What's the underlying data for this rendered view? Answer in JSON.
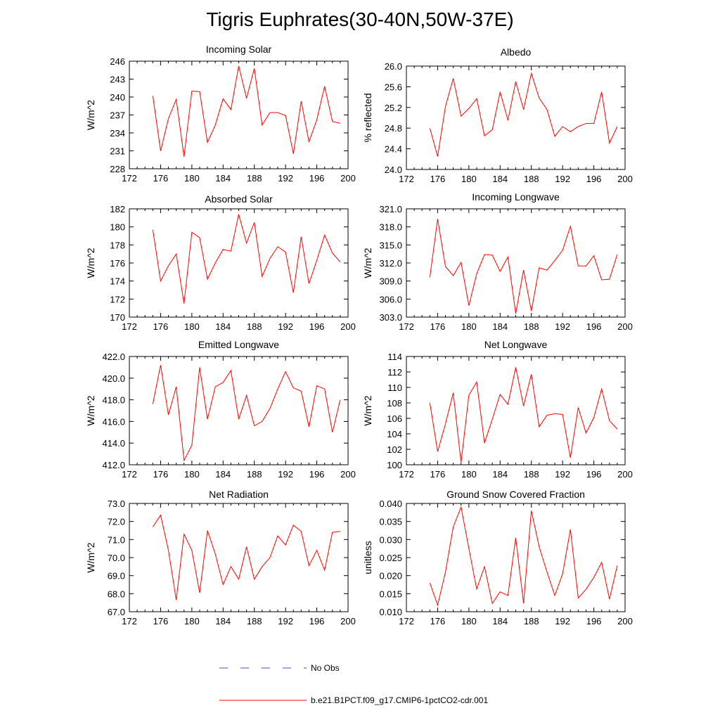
{
  "title": "Tigris Euphrates(30-40N,50W-37E)",
  "legend": {
    "entries": [
      {
        "label": "No Obs",
        "style": "dashed",
        "color": "#4b4bcc"
      },
      {
        "label": "b.e21.B1PCT.f09_g17.CMIP6-1pctCO2-cdr.001",
        "style": "solid",
        "color": "#ff0000"
      }
    ]
  },
  "chart_data": [
    {
      "type": "line",
      "title": "Incoming Solar",
      "ylabel": "W/m^2",
      "xlim": [
        172,
        200
      ],
      "ylim": [
        228,
        246
      ],
      "xticks": [
        "172",
        "176",
        "180",
        "184",
        "188",
        "192",
        "196",
        "200"
      ],
      "yticks": [
        "228",
        "231",
        "234",
        "237",
        "240",
        "243",
        "246"
      ],
      "series": [
        {
          "color": "#ff0000",
          "x": [
            175,
            176,
            177,
            178,
            179,
            180,
            181,
            182,
            183,
            184,
            185,
            186,
            187,
            188,
            189,
            190,
            191,
            192,
            193,
            194,
            195,
            196,
            197,
            198,
            199
          ],
          "y": [
            240.2,
            231.0,
            236.4,
            239.6,
            230.0,
            241.0,
            240.9,
            232.4,
            235.3,
            239.7,
            237.9,
            245.2,
            239.8,
            244.8,
            235.3,
            237.4,
            237.4,
            236.9,
            230.5,
            239.3,
            232.5,
            236.2,
            241.8,
            235.9,
            235.6
          ]
        }
      ]
    },
    {
      "type": "line",
      "title": "Albedo",
      "ylabel": "% reflected",
      "xlim": [
        172,
        200
      ],
      "ylim": [
        24.0,
        26.0
      ],
      "xticks": [
        "172",
        "176",
        "180",
        "184",
        "188",
        "192",
        "196",
        "200"
      ],
      "yticks": [
        "24.0",
        "24.4",
        "24.8",
        "25.2",
        "25.6",
        "26.0"
      ],
      "series": [
        {
          "color": "#ff0000",
          "x": [
            175,
            176,
            177,
            178,
            179,
            180,
            181,
            182,
            183,
            184,
            185,
            186,
            187,
            188,
            189,
            190,
            191,
            192,
            193,
            194,
            195,
            196,
            197,
            198,
            199
          ],
          "y": [
            24.8,
            24.25,
            25.22,
            25.76,
            25.03,
            25.18,
            25.37,
            24.65,
            24.77,
            25.5,
            24.95,
            25.7,
            25.16,
            25.86,
            25.38,
            25.16,
            24.64,
            24.83,
            24.73,
            24.83,
            24.89,
            24.89,
            25.5,
            24.51,
            24.83
          ]
        }
      ]
    },
    {
      "type": "line",
      "title": "Absorbed Solar",
      "ylabel": "W/m^2",
      "xlim": [
        172,
        200
      ],
      "ylim": [
        170,
        182
      ],
      "xticks": [
        "172",
        "176",
        "180",
        "184",
        "188",
        "192",
        "196",
        "200"
      ],
      "yticks": [
        "170",
        "172",
        "174",
        "176",
        "178",
        "180",
        "182"
      ],
      "series": [
        {
          "color": "#ff0000",
          "x": [
            175,
            176,
            177,
            178,
            179,
            180,
            181,
            182,
            183,
            184,
            185,
            186,
            187,
            188,
            189,
            190,
            191,
            192,
            193,
            194,
            195,
            196,
            197,
            198,
            199
          ],
          "y": [
            179.7,
            174.0,
            175.7,
            177.0,
            171.5,
            179.4,
            178.8,
            174.2,
            176.0,
            177.5,
            177.3,
            181.4,
            178.2,
            180.5,
            174.5,
            176.5,
            177.8,
            177.2,
            172.7,
            178.9,
            173.7,
            176.3,
            179.1,
            177.1,
            176.1
          ]
        }
      ]
    },
    {
      "type": "line",
      "title": "Incoming Longwave",
      "ylabel": "W/m^2",
      "xlim": [
        172,
        200
      ],
      "ylim": [
        303.0,
        321.0
      ],
      "xticks": [
        "172",
        "176",
        "180",
        "184",
        "188",
        "192",
        "196",
        "200"
      ],
      "yticks": [
        "303.0",
        "306.0",
        "309.0",
        "312.0",
        "315.0",
        "318.0",
        "321.0"
      ],
      "series": [
        {
          "color": "#ff0000",
          "x": [
            175,
            176,
            177,
            178,
            179,
            180,
            181,
            182,
            183,
            184,
            185,
            186,
            187,
            188,
            189,
            190,
            191,
            192,
            193,
            194,
            195,
            196,
            197,
            198,
            199
          ],
          "y": [
            309.6,
            319.3,
            311.4,
            309.9,
            312.1,
            304.9,
            310.2,
            313.4,
            313.3,
            310.6,
            313.0,
            303.6,
            310.8,
            304.0,
            311.2,
            310.8,
            312.4,
            314.1,
            318.1,
            311.5,
            311.5,
            313.2,
            309.2,
            309.3,
            313.4
          ]
        }
      ]
    },
    {
      "type": "line",
      "title": "Emitted Longwave",
      "ylabel": "W/m^2",
      "xlim": [
        172,
        200
      ],
      "ylim": [
        412.0,
        422.0
      ],
      "xticks": [
        "172",
        "176",
        "180",
        "184",
        "188",
        "192",
        "196",
        "200"
      ],
      "yticks": [
        "412.0",
        "414.0",
        "416.0",
        "418.0",
        "420.0",
        "422.0"
      ],
      "series": [
        {
          "color": "#ff0000",
          "x": [
            175,
            176,
            177,
            178,
            179,
            180,
            181,
            182,
            183,
            184,
            185,
            186,
            187,
            188,
            189,
            190,
            191,
            192,
            193,
            194,
            195,
            196,
            197,
            198,
            199
          ],
          "y": [
            417.6,
            421.2,
            416.6,
            419.2,
            412.4,
            413.8,
            421.0,
            416.2,
            419.2,
            419.6,
            420.7,
            416.2,
            418.4,
            415.6,
            416.0,
            417.2,
            419.0,
            420.6,
            419.1,
            418.8,
            415.5,
            419.3,
            419.0,
            415.0,
            418.0
          ]
        }
      ]
    },
    {
      "type": "line",
      "title": "Net Longwave",
      "ylabel": "W/m^2",
      "xlim": [
        172,
        200
      ],
      "ylim": [
        100,
        114
      ],
      "xticks": [
        "172",
        "176",
        "180",
        "184",
        "188",
        "192",
        "196",
        "200"
      ],
      "yticks": [
        "100",
        "102",
        "104",
        "106",
        "108",
        "110",
        "112",
        "114"
      ],
      "series": [
        {
          "color": "#ff0000",
          "x": [
            175,
            176,
            177,
            178,
            179,
            180,
            181,
            182,
            183,
            184,
            185,
            186,
            187,
            188,
            189,
            190,
            191,
            192,
            193,
            194,
            195,
            196,
            197,
            198,
            199
          ],
          "y": [
            108.0,
            101.7,
            105.3,
            109.3,
            100.3,
            109.0,
            110.7,
            102.8,
            105.9,
            109.1,
            107.8,
            112.6,
            107.6,
            111.7,
            104.9,
            106.4,
            106.6,
            106.5,
            100.9,
            107.4,
            104.1,
            106.1,
            109.8,
            105.7,
            104.6
          ]
        }
      ]
    },
    {
      "type": "line",
      "title": "Net Radiation",
      "ylabel": "W/m^2",
      "xlim": [
        172,
        200
      ],
      "ylim": [
        67.0,
        73.0
      ],
      "xticks": [
        "172",
        "176",
        "180",
        "184",
        "188",
        "192",
        "196",
        "200"
      ],
      "yticks": [
        "67.0",
        "68.0",
        "69.0",
        "70.0",
        "71.0",
        "72.0",
        "73.0"
      ],
      "series": [
        {
          "color": "#ff0000",
          "x": [
            175,
            176,
            177,
            178,
            179,
            180,
            181,
            182,
            183,
            184,
            185,
            186,
            187,
            188,
            189,
            190,
            191,
            192,
            193,
            194,
            195,
            196,
            197,
            198,
            199
          ],
          "y": [
            71.7,
            72.35,
            70.4,
            67.65,
            71.3,
            70.4,
            68.05,
            71.5,
            70.2,
            68.5,
            69.5,
            68.8,
            70.6,
            68.8,
            69.5,
            70.0,
            71.2,
            70.7,
            71.8,
            71.45,
            69.55,
            70.4,
            69.3,
            71.4,
            71.45
          ]
        }
      ]
    },
    {
      "type": "line",
      "title": "Ground Snow Covered Fraction",
      "ylabel": "unitless",
      "xlim": [
        172,
        200
      ],
      "ylim": [
        0.01,
        0.04
      ],
      "xticks": [
        "172",
        "176",
        "180",
        "184",
        "188",
        "192",
        "196",
        "200"
      ],
      "yticks": [
        "0.010",
        "0.015",
        "0.020",
        "0.025",
        "0.030",
        "0.035",
        "0.040"
      ],
      "series": [
        {
          "color": "#ff0000",
          "x": [
            175,
            176,
            177,
            178,
            179,
            180,
            181,
            182,
            183,
            184,
            185,
            186,
            187,
            188,
            189,
            190,
            191,
            192,
            193,
            194,
            195,
            196,
            197,
            198,
            199
          ],
          "y": [
            0.018,
            0.0118,
            0.021,
            0.0335,
            0.039,
            0.0275,
            0.0163,
            0.0225,
            0.0123,
            0.0155,
            0.0145,
            0.0305,
            0.0123,
            0.038,
            0.028,
            0.021,
            0.0145,
            0.0205,
            0.0328,
            0.0138,
            0.0162,
            0.0195,
            0.0237,
            0.0135,
            0.0228
          ]
        }
      ]
    }
  ]
}
